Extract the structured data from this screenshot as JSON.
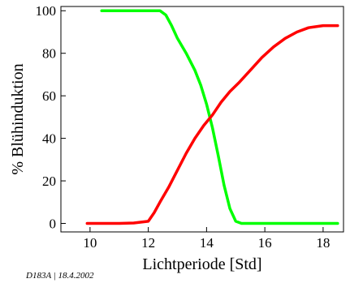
{
  "chart_data": {
    "type": "line",
    "xlabel": "Lichtperiode [Std]",
    "ylabel": "% Blühinduktion",
    "xlim": [
      9,
      18.7
    ],
    "ylim": [
      -4,
      102
    ],
    "xticks": [
      10,
      12,
      14,
      16,
      18
    ],
    "yticks": [
      0,
      20,
      40,
      60,
      80,
      100
    ],
    "grid": false,
    "legend": "none",
    "series": [
      {
        "color": "#00ff00",
        "points": [
          [
            10.4,
            100
          ],
          [
            11.0,
            100
          ],
          [
            11.6,
            100
          ],
          [
            12.0,
            100
          ],
          [
            12.4,
            100
          ],
          [
            12.6,
            98
          ],
          [
            12.8,
            93
          ],
          [
            13.0,
            87
          ],
          [
            13.3,
            80
          ],
          [
            13.6,
            72
          ],
          [
            13.8,
            65
          ],
          [
            14.0,
            56
          ],
          [
            14.2,
            45
          ],
          [
            14.4,
            32
          ],
          [
            14.6,
            18
          ],
          [
            14.8,
            7
          ],
          [
            15.0,
            1
          ],
          [
            15.2,
            0
          ],
          [
            15.6,
            0
          ],
          [
            16.0,
            0
          ],
          [
            17.0,
            0
          ],
          [
            18.0,
            0
          ],
          [
            18.5,
            0
          ]
        ]
      },
      {
        "color": "#ff0000",
        "points": [
          [
            9.9,
            0
          ],
          [
            10.5,
            0
          ],
          [
            11.0,
            0
          ],
          [
            11.5,
            0.2
          ],
          [
            12.0,
            1
          ],
          [
            12.2,
            5
          ],
          [
            12.4,
            10
          ],
          [
            12.7,
            17
          ],
          [
            13.0,
            25
          ],
          [
            13.3,
            33
          ],
          [
            13.6,
            40
          ],
          [
            13.9,
            46
          ],
          [
            14.2,
            51
          ],
          [
            14.5,
            57
          ],
          [
            14.8,
            62
          ],
          [
            15.1,
            66
          ],
          [
            15.5,
            72
          ],
          [
            15.9,
            78
          ],
          [
            16.3,
            83
          ],
          [
            16.7,
            87
          ],
          [
            17.1,
            90
          ],
          [
            17.5,
            92
          ],
          [
            18.0,
            93
          ],
          [
            18.5,
            93
          ]
        ]
      }
    ]
  },
  "footnote": "D183A | 18.4.2002"
}
